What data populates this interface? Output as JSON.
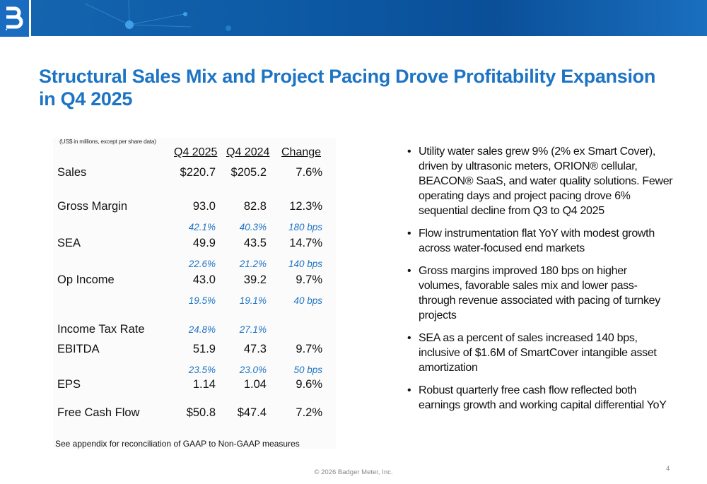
{
  "title": "Structural Sales Mix and Project Pacing Drove Profitability Expansion in Q4 2025",
  "table": {
    "units": "(US$ in millions, except per share data)",
    "headers": [
      "Q4 2025",
      "Q4 2024",
      "Change"
    ],
    "rows": [
      {
        "label": "Sales",
        "values": [
          "$220.7",
          "$205.2",
          "7.6%"
        ]
      },
      {
        "label": "Gross Margin",
        "values": [
          "93.0",
          "82.8",
          "12.3%"
        ],
        "sub": [
          "42.1%",
          "40.3%",
          "180 bps"
        ]
      },
      {
        "label": "SEA",
        "values": [
          "49.9",
          "43.5",
          "14.7%"
        ],
        "sub": [
          "22.6%",
          "21.2%",
          "140 bps"
        ]
      },
      {
        "label": "Op Income",
        "values": [
          "43.0",
          "39.2",
          "9.7%"
        ],
        "sub": [
          "19.5%",
          "19.1%",
          "40 bps"
        ]
      },
      {
        "label": "Income Tax Rate",
        "sub": [
          "24.8%",
          "27.1%"
        ]
      },
      {
        "label": "EBITDA",
        "values": [
          "51.9",
          "47.3",
          "9.7%"
        ],
        "sub": [
          "23.5%",
          "23.0%",
          "50 bps"
        ]
      },
      {
        "label": "EPS",
        "values": [
          "1.14",
          "1.04",
          "9.6%"
        ]
      },
      {
        "label": "Free Cash Flow",
        "values": [
          "$50.8",
          "$47.4",
          "7.2%"
        ]
      }
    ],
    "note": "See appendix for reconciliation of GAAP to Non-GAAP measures"
  },
  "bullets": [
    "Utility water sales grew 9% (2% ex Smart Cover), driven by ultrasonic meters, ORION® cellular, BEACON® SaaS, and water quality solutions. Fewer operating days and project pacing drove 6% sequential decline from Q3 to Q4 2025",
    "Flow instrumentation flat YoY with modest growth across water-focused end markets",
    "Gross margins improved 180 bps on higher volumes, favorable sales mix and lower pass-through revenue associated with pacing of turnkey projects",
    "SEA as a percent of sales increased 140 bps, inclusive of $1.6M of SmartCover intangible asset amortization",
    "Robust quarterly free cash flow reflected both earnings growth and working capital differential YoY"
  ],
  "footer": "© 2026 Badger Meter, Inc.",
  "page_number": "4",
  "colors": {
    "brand_blue": "#1d74c4",
    "banner": "#0d5aa5"
  }
}
